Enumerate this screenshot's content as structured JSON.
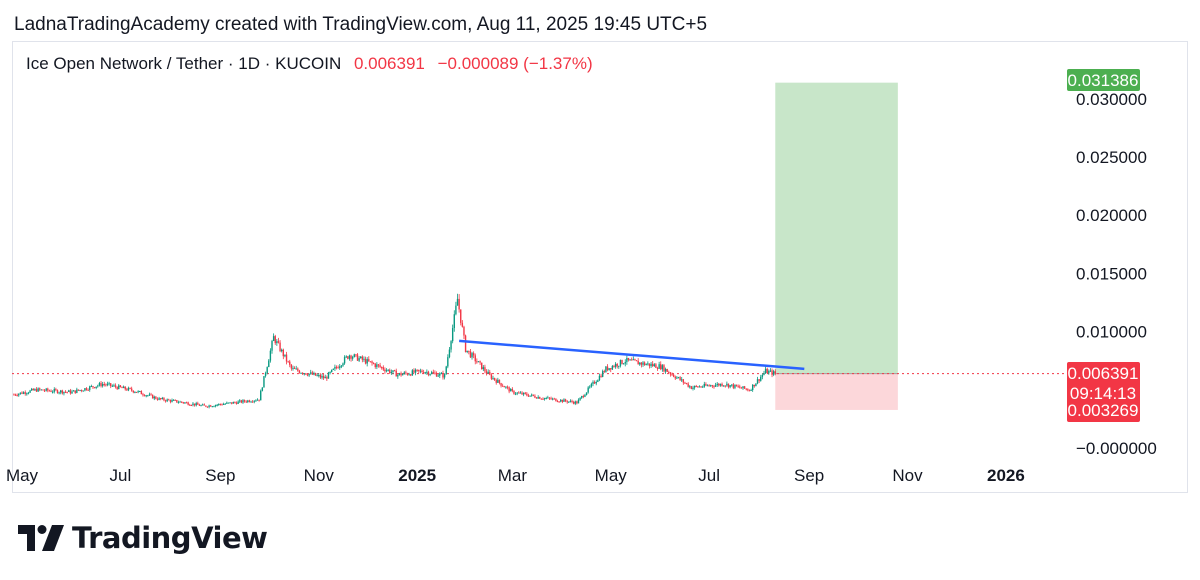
{
  "credit": "LadnaTradingAcademy created with TradingView.com, Aug 11, 2025 19:45 UTC+5",
  "symbol": {
    "name": "Ice Open Network / Tether · 1D · KUCOIN",
    "price": "0.006391",
    "change": "−0.000089 (−1.37%)"
  },
  "brand": {
    "wordmark": "TradingView"
  },
  "colors": {
    "up": "#089981",
    "down": "#f23645",
    "trendline": "#2962ff",
    "target_zone": "#c8e6c9",
    "stop_zone": "#fcd7da",
    "target_label": "#4caf50",
    "price_label": "#f23645"
  },
  "chart_data": {
    "type": "candlestick",
    "title": "Ice Open Network / Tether · 1D · KUCOIN",
    "x_axis": {
      "ticks": [
        {
          "label": "May",
          "date": "2024-05-01",
          "bold": false
        },
        {
          "label": "Jul",
          "date": "2024-07-01",
          "bold": false
        },
        {
          "label": "Sep",
          "date": "2024-09-01",
          "bold": false
        },
        {
          "label": "Nov",
          "date": "2024-11-01",
          "bold": false
        },
        {
          "label": "2025",
          "date": "2025-01-01",
          "bold": true
        },
        {
          "label": "Mar",
          "date": "2025-03-01",
          "bold": false
        },
        {
          "label": "May",
          "date": "2025-05-01",
          "bold": false
        },
        {
          "label": "Jul",
          "date": "2025-07-01",
          "bold": false
        },
        {
          "label": "Sep",
          "date": "2025-09-01",
          "bold": false
        },
        {
          "label": "Nov",
          "date": "2025-11-01",
          "bold": false
        },
        {
          "label": "2026",
          "date": "2026-01-01",
          "bold": true
        }
      ]
    },
    "y_axis": {
      "position": "right",
      "ticks": [
        "−0.000000",
        "0.010000",
        "0.015000",
        "0.020000",
        "0.025000",
        "0.030000"
      ],
      "tick_values": [
        0,
        0.01,
        0.015,
        0.02,
        0.025,
        0.03
      ]
    },
    "price_path": [
      {
        "date": "2024-04-26",
        "close": 0.0046
      },
      {
        "date": "2024-05-10",
        "close": 0.005
      },
      {
        "date": "2024-06-01",
        "close": 0.0048
      },
      {
        "date": "2024-06-20",
        "close": 0.0055
      },
      {
        "date": "2024-07-10",
        "close": 0.0049
      },
      {
        "date": "2024-07-25",
        "close": 0.0042
      },
      {
        "date": "2024-08-10",
        "close": 0.0039
      },
      {
        "date": "2024-08-22",
        "close": 0.0036
      },
      {
        "date": "2024-09-10",
        "close": 0.0039
      },
      {
        "date": "2024-09-25",
        "close": 0.0042
      },
      {
        "date": "2024-10-04",
        "close": 0.0095
      },
      {
        "date": "2024-10-15",
        "close": 0.0068
      },
      {
        "date": "2024-11-05",
        "close": 0.006
      },
      {
        "date": "2024-11-20",
        "close": 0.008
      },
      {
        "date": "2024-12-05",
        "close": 0.0072
      },
      {
        "date": "2024-12-20",
        "close": 0.0063
      },
      {
        "date": "2025-01-05",
        "close": 0.0066
      },
      {
        "date": "2025-01-18",
        "close": 0.0062
      },
      {
        "date": "2025-01-26",
        "close": 0.0128
      },
      {
        "date": "2025-01-31",
        "close": 0.0085
      },
      {
        "date": "2025-02-15",
        "close": 0.0062
      },
      {
        "date": "2025-03-01",
        "close": 0.0048
      },
      {
        "date": "2025-03-20",
        "close": 0.0043
      },
      {
        "date": "2025-04-10",
        "close": 0.0039
      },
      {
        "date": "2025-04-28",
        "close": 0.0068
      },
      {
        "date": "2025-05-10",
        "close": 0.0075
      },
      {
        "date": "2025-06-01",
        "close": 0.007
      },
      {
        "date": "2025-06-20",
        "close": 0.0052
      },
      {
        "date": "2025-07-10",
        "close": 0.0055
      },
      {
        "date": "2025-07-26",
        "close": 0.005
      },
      {
        "date": "2025-08-05",
        "close": 0.0066
      },
      {
        "date": "2025-08-11",
        "close": 0.006391
      }
    ],
    "trendline": [
      {
        "date": "2025-01-27",
        "price": 0.0092
      },
      {
        "date": "2025-08-29",
        "price": 0.0068
      }
    ],
    "position_tool": {
      "start": "2025-08-11",
      "end": "2025-10-26",
      "entry": 0.006391,
      "target": 0.031386,
      "stop": 0.003269
    },
    "labels": {
      "target": "0.031386",
      "last_price": "0.006391",
      "countdown": "09:14:13",
      "stop": "0.003269"
    },
    "last_price": 0.006391
  }
}
